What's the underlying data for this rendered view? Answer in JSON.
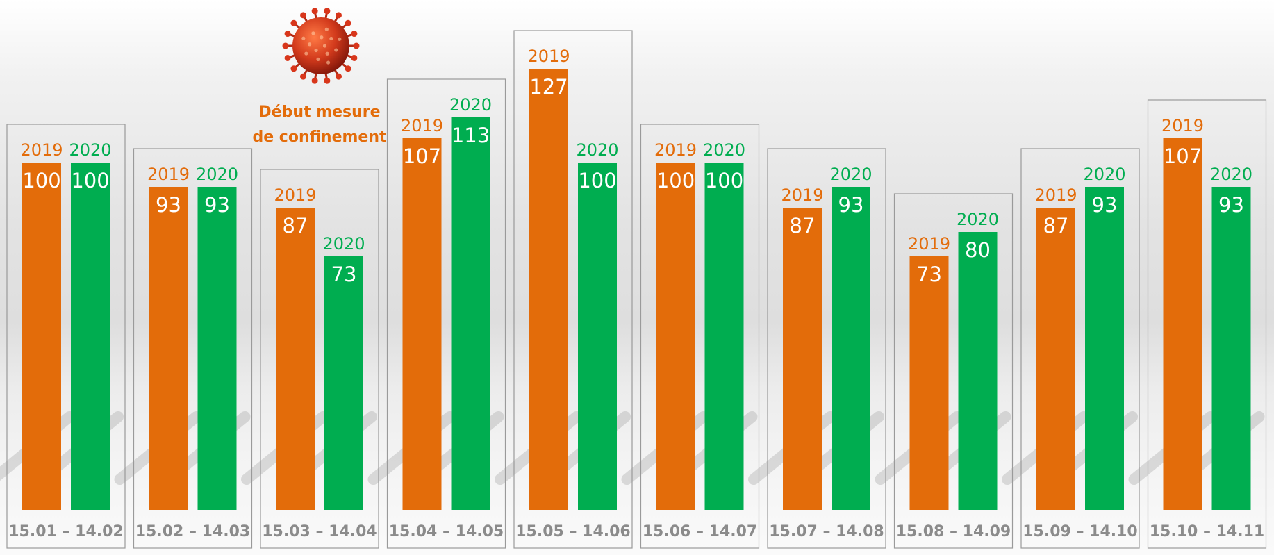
{
  "annotation": {
    "lines": [
      "Début mesure",
      "de confinement"
    ],
    "icon": "coronavirus-icon"
  },
  "colors": {
    "series_2019": "#e36c0a",
    "series_2020": "#00ad50",
    "frame": "#9a9a9a",
    "category_text": "#8b8b8b",
    "value_text": "#ffffff"
  },
  "chart_data": {
    "type": "bar",
    "categories": [
      "15.01 – 14.02",
      "15.02 – 14.03",
      "15.03 – 14.04",
      "15.04 – 14.05",
      "15.05 – 14.06",
      "15.06 – 14.07",
      "15.07 – 14.08",
      "15.08 – 14.09",
      "15.09 – 14.10",
      "15.10 – 14.11"
    ],
    "series": [
      {
        "name": "2019",
        "color": "#e36c0a",
        "values": [
          100,
          93,
          87,
          107,
          127,
          100,
          87,
          73,
          87,
          107
        ]
      },
      {
        "name": "2020",
        "color": "#00ad50",
        "values": [
          100,
          93,
          73,
          113,
          100,
          100,
          93,
          80,
          93,
          93
        ]
      }
    ],
    "ylim": [
      0,
      127
    ],
    "grid": false,
    "legend": "above-each-bar",
    "annotation": {
      "category": "15.03 – 14.04",
      "text": "Début mesure de confinement"
    }
  }
}
